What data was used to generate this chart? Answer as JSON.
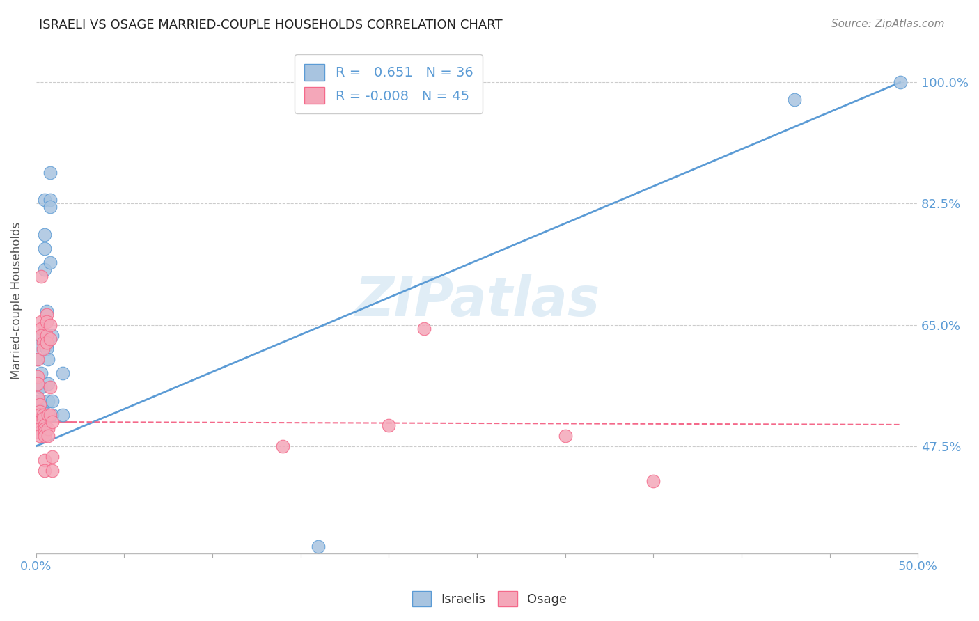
{
  "title": "ISRAELI VS OSAGE MARRIED-COUPLE HOUSEHOLDS CORRELATION CHART",
  "source": "Source: ZipAtlas.com",
  "ylabel": "Married-couple Households",
  "ytick_labels": [
    "47.5%",
    "65.0%",
    "82.5%",
    "100.0%"
  ],
  "ytick_values": [
    47.5,
    65.0,
    82.5,
    100.0
  ],
  "xlim": [
    0.0,
    50.0
  ],
  "ylim": [
    32.0,
    105.0
  ],
  "israeli_color": "#a8c4e0",
  "osage_color": "#f4a7b9",
  "israeli_line_color": "#5b9bd5",
  "osage_line_color": "#f4698a",
  "israeli_R": 0.651,
  "israeli_N": 36,
  "osage_R": -0.008,
  "osage_N": 45,
  "watermark": "ZIPatlas",
  "israeli_points": [
    [
      0.1,
      62.0
    ],
    [
      0.1,
      60.0
    ],
    [
      0.2,
      56.0
    ],
    [
      0.2,
      54.0
    ],
    [
      0.3,
      63.5
    ],
    [
      0.3,
      58.0
    ],
    [
      0.3,
      56.0
    ],
    [
      0.3,
      53.5
    ],
    [
      0.4,
      52.5
    ],
    [
      0.4,
      52.0
    ],
    [
      0.4,
      52.0
    ],
    [
      0.4,
      50.5
    ],
    [
      0.5,
      83.0
    ],
    [
      0.5,
      78.0
    ],
    [
      0.5,
      76.0
    ],
    [
      0.5,
      73.0
    ],
    [
      0.6,
      67.0
    ],
    [
      0.6,
      63.5
    ],
    [
      0.6,
      62.0
    ],
    [
      0.6,
      61.5
    ],
    [
      0.7,
      60.0
    ],
    [
      0.7,
      56.5
    ],
    [
      0.7,
      54.0
    ],
    [
      0.7,
      52.0
    ],
    [
      0.8,
      87.0
    ],
    [
      0.8,
      83.0
    ],
    [
      0.8,
      82.0
    ],
    [
      0.8,
      74.0
    ],
    [
      0.9,
      63.5
    ],
    [
      0.9,
      54.0
    ],
    [
      0.9,
      52.0
    ],
    [
      1.5,
      58.0
    ],
    [
      1.5,
      52.0
    ],
    [
      16.0,
      33.0
    ],
    [
      43.0,
      97.5
    ],
    [
      49.0,
      100.0
    ]
  ],
  "osage_points": [
    [
      0.1,
      60.0
    ],
    [
      0.1,
      57.5
    ],
    [
      0.1,
      56.5
    ],
    [
      0.1,
      54.5
    ],
    [
      0.2,
      53.5
    ],
    [
      0.2,
      52.5
    ],
    [
      0.2,
      52.0
    ],
    [
      0.2,
      51.0
    ],
    [
      0.2,
      50.5
    ],
    [
      0.2,
      50.0
    ],
    [
      0.2,
      49.5
    ],
    [
      0.2,
      49.0
    ],
    [
      0.3,
      72.0
    ],
    [
      0.3,
      65.5
    ],
    [
      0.3,
      64.5
    ],
    [
      0.3,
      63.5
    ],
    [
      0.4,
      62.5
    ],
    [
      0.4,
      61.5
    ],
    [
      0.4,
      52.0
    ],
    [
      0.4,
      51.5
    ],
    [
      0.5,
      50.5
    ],
    [
      0.5,
      50.0
    ],
    [
      0.5,
      49.5
    ],
    [
      0.5,
      49.0
    ],
    [
      0.5,
      45.5
    ],
    [
      0.5,
      44.0
    ],
    [
      0.6,
      66.5
    ],
    [
      0.6,
      65.5
    ],
    [
      0.6,
      63.5
    ],
    [
      0.6,
      62.5
    ],
    [
      0.7,
      52.0
    ],
    [
      0.7,
      50.0
    ],
    [
      0.7,
      49.0
    ],
    [
      0.8,
      65.0
    ],
    [
      0.8,
      63.0
    ],
    [
      0.8,
      56.0
    ],
    [
      0.8,
      52.0
    ],
    [
      0.9,
      51.0
    ],
    [
      0.9,
      46.0
    ],
    [
      0.9,
      44.0
    ],
    [
      14.0,
      47.5
    ],
    [
      20.0,
      50.5
    ],
    [
      22.0,
      64.5
    ],
    [
      30.0,
      49.0
    ],
    [
      35.0,
      42.5
    ]
  ],
  "israeli_trendline": [
    [
      0.0,
      47.5
    ],
    [
      49.0,
      100.0
    ]
  ],
  "osage_trendline": [
    [
      0.0,
      51.0
    ],
    [
      49.0,
      50.6
    ]
  ]
}
